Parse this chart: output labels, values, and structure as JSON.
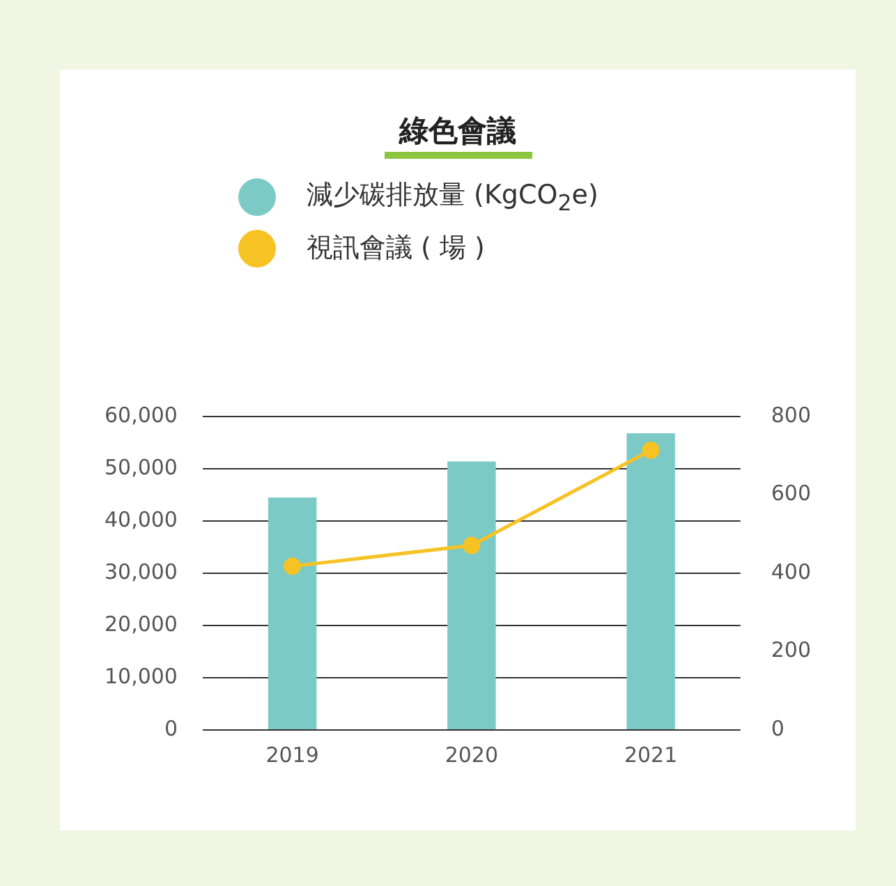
{
  "chart_data": {
    "type": "bar",
    "title": "綠色會議",
    "categories": [
      "2019",
      "2020",
      "2021"
    ],
    "series": [
      {
        "name": "減少碳排放量 (KgCO$_{2}$e)",
        "color": "#7ccac6",
        "values": [
          44500,
          51400,
          56800
        ]
      },
      {
        "name": "視訊會議 ( 場 )",
        "type": "line",
        "axis": "y2",
        "color": "#f6c224",
        "values": [
          418,
          471,
          714
        ]
      }
    ],
    "ylim": [
      0,
      60000
    ],
    "yticks": [
      0,
      {
        "value": 10000,
        "label": "10,000"
      },
      {
        "value": 20000,
        "label": "20,000"
      },
      {
        "value": 30000,
        "label": "30,000"
      },
      {
        "value": 40000,
        "label": "40,000"
      },
      {
        "value": 50000,
        "label": "50,000"
      },
      {
        "value": 60000,
        "label": "60,000"
      }
    ],
    "y2lim": [
      0,
      800
    ],
    "y2ticks": [
      0,
      200,
      400,
      600,
      800
    ],
    "grid": "y",
    "legend": "top",
    "marker": "circle"
  }
}
